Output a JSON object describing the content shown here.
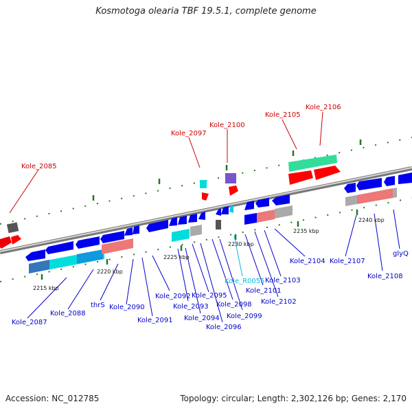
{
  "title": "Kosmotoga olearia TBF 19.5.1, complete genome",
  "accession": "Accession: NC_012785",
  "summary": "Topology: circular; Length: 2,302,126 bp; Genes: 2,170",
  "colors": {
    "gene_forward": "#ff0000",
    "gene_reverse": "#0000ff",
    "rna_reverse": "#00ffff",
    "label_highlight": "#cc0000",
    "label_default": "#0000cc",
    "label_rna": "#00bbdd",
    "backbone": "#999999"
  },
  "scale_labels": [
    "2215 kbp",
    "2220 kbp",
    "2225 kbp",
    "2230 kbp",
    "2235 kbp",
    "2240 kbp"
  ],
  "top_labels": [
    "Kole_2085",
    "Kole_2097",
    "Kole_2100",
    "Kole_2105",
    "Kole_2106"
  ],
  "bottom_labels": [
    "Kole_2087",
    "Kole_2088",
    "thrS",
    "Kole_2090",
    "Kole_2091",
    "Kole_2092",
    "Kole_2093",
    "Kole_2094",
    "Kole_2095",
    "Kole_2096",
    "Kole_2098",
    "Kole_2099",
    "Kole_R0055",
    "Kole_2101",
    "Kole_2102",
    "Kole_2103",
    "Kole_2104",
    "Kole_2107",
    "Kole_2108",
    "glyQ"
  ]
}
